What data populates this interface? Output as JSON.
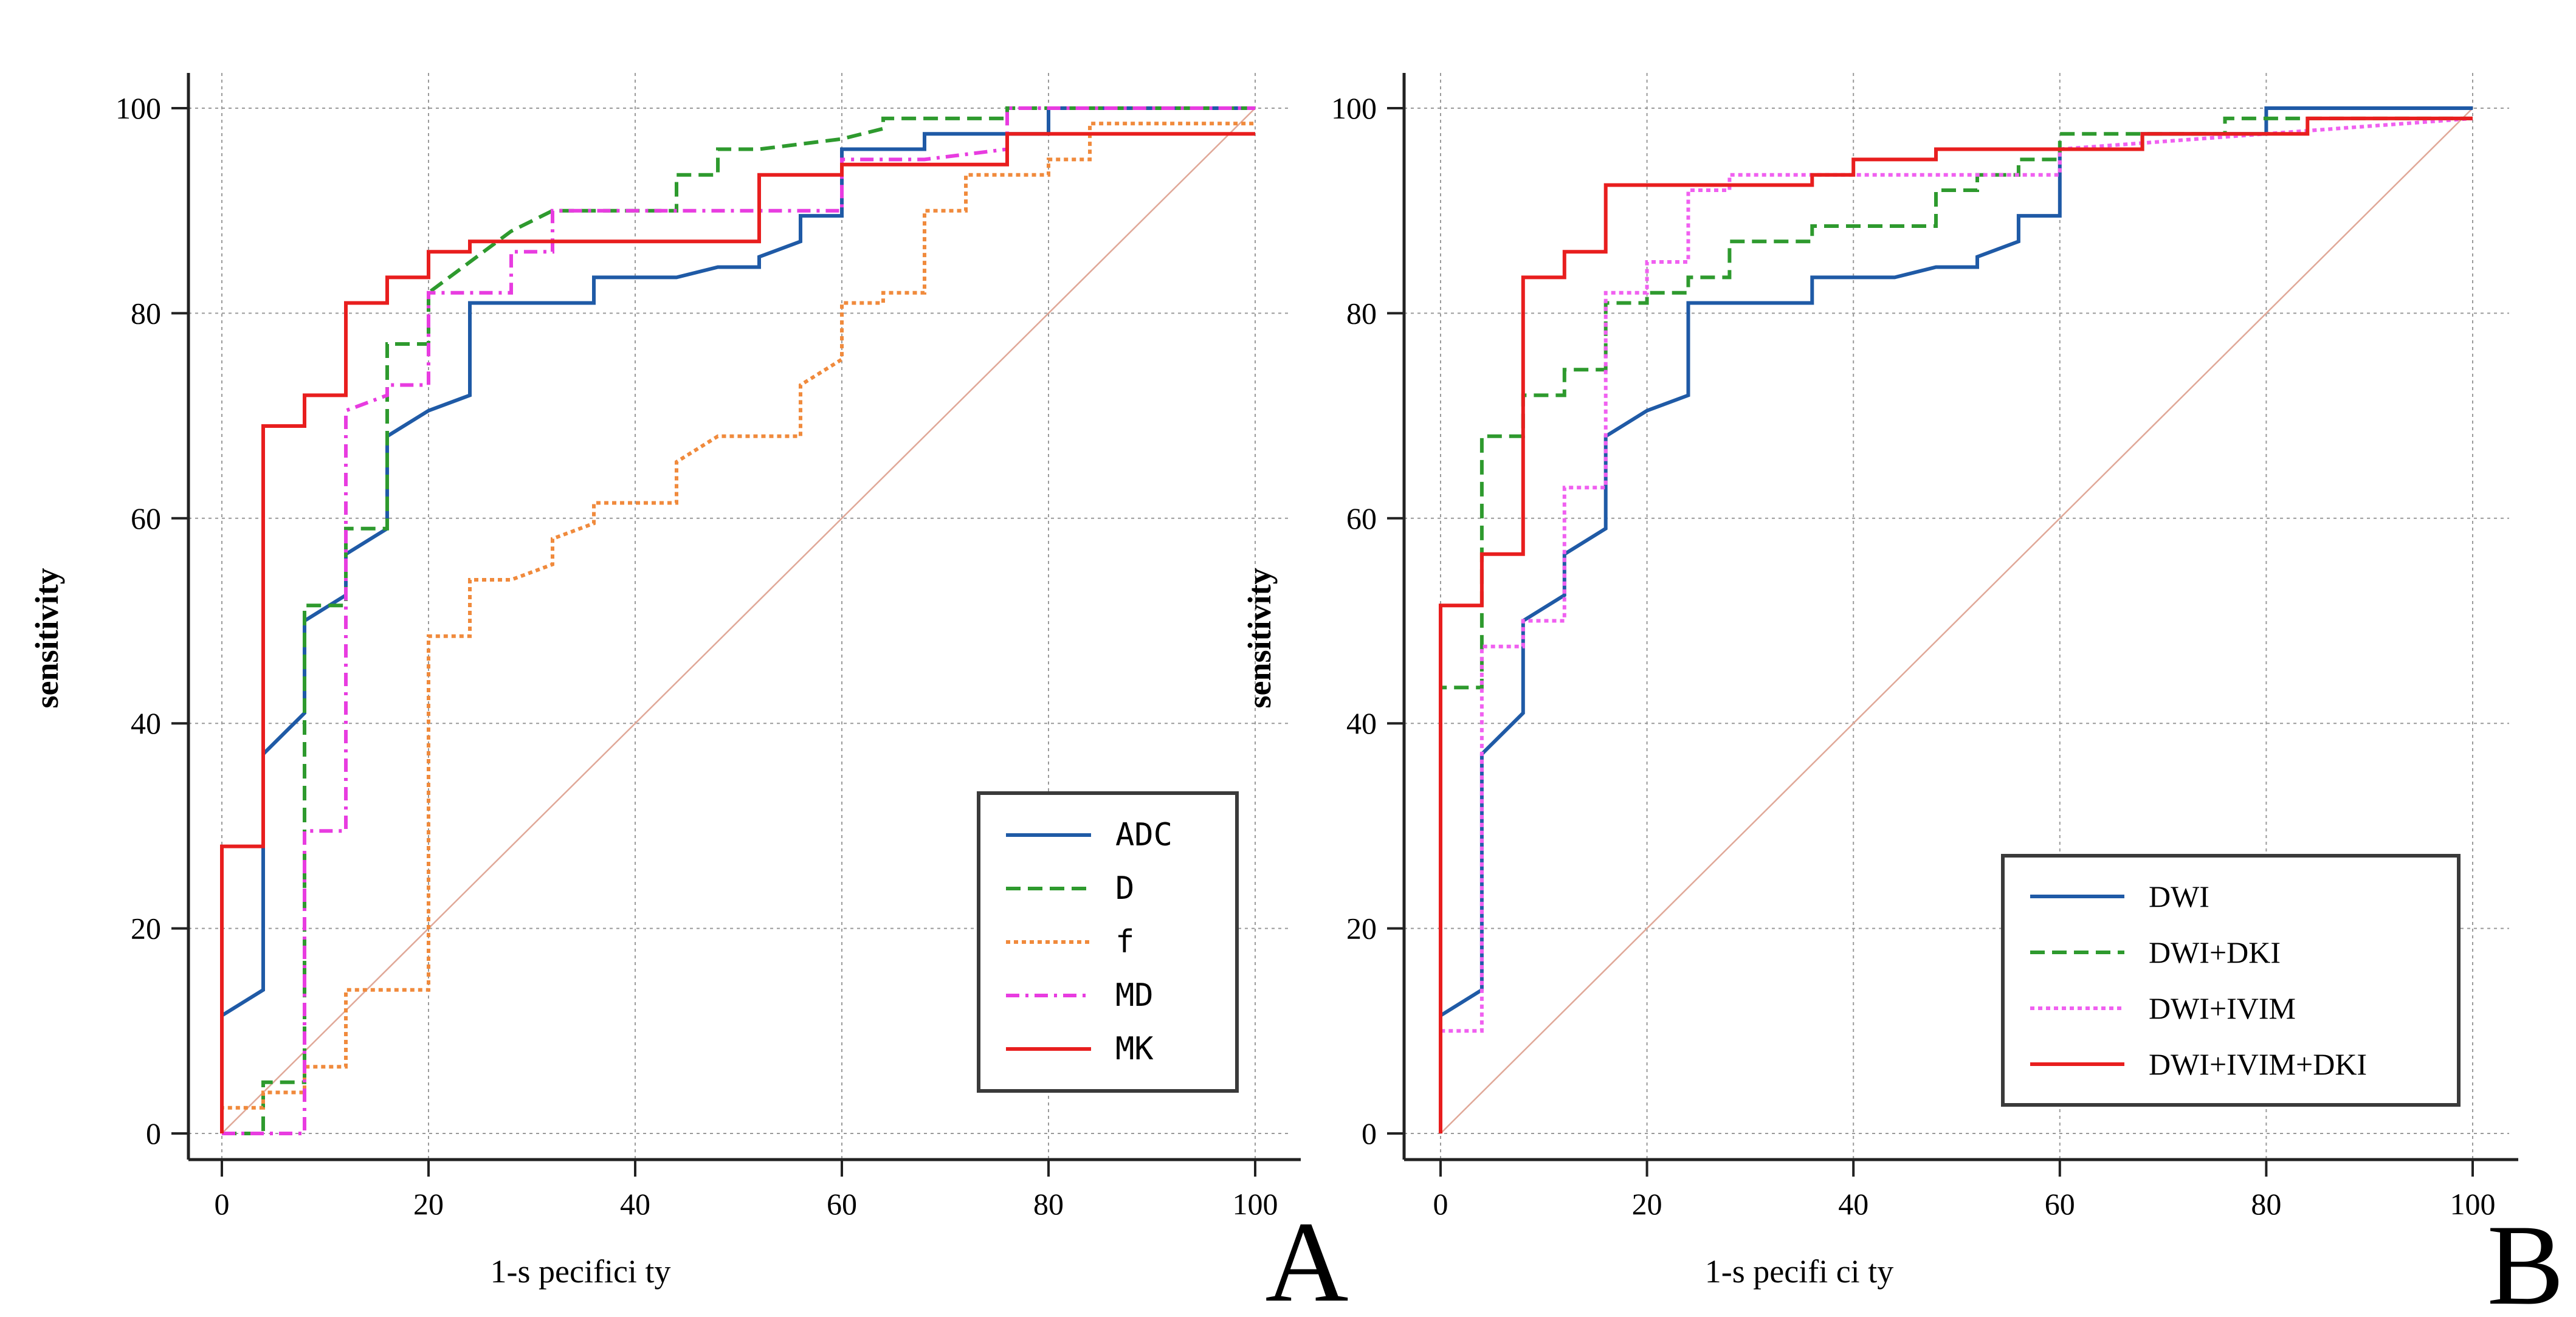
{
  "chart_data": [
    {
      "panel_label": "A",
      "type": "line",
      "xlabel": "1-s pecifici ty",
      "ylabel": "sensitivity",
      "xlim": [
        0,
        100
      ],
      "ylim": [
        0,
        100
      ],
      "xticks": [
        "0",
        "20",
        "40",
        "60",
        "80",
        "100"
      ],
      "yticks": [
        "0",
        "20",
        "40",
        "60",
        "80",
        "100"
      ],
      "grid": true,
      "legend_position": "bottom-right",
      "reference_line": {
        "x": [
          0,
          100
        ],
        "y": [
          0,
          100
        ],
        "color": "#e0a898"
      },
      "series": [
        {
          "name": "ADC",
          "color": "#1f5aa6",
          "dash": "solid",
          "x": [
            0,
            0,
            4,
            4,
            8,
            8,
            12,
            12,
            16,
            16,
            20,
            24,
            24,
            36,
            36,
            44,
            48,
            52,
            52,
            56,
            56,
            60,
            60,
            68,
            68,
            80,
            80,
            100
          ],
          "y": [
            0,
            11.5,
            14,
            37,
            41,
            50,
            52.5,
            56.5,
            59,
            68,
            70.5,
            72,
            81,
            81,
            83.5,
            83.5,
            84.5,
            84.5,
            85.5,
            87,
            89.5,
            89.5,
            96,
            96,
            97.5,
            97.5,
            100,
            100
          ]
        },
        {
          "name": "D",
          "color": "#2e9a2e",
          "dash": "dashed",
          "x": [
            0,
            4,
            4,
            8,
            8,
            12,
            12,
            16,
            16,
            20,
            20,
            28,
            32,
            44,
            44,
            48,
            48,
            52,
            60,
            64,
            64,
            76,
            76,
            100
          ],
          "y": [
            0,
            0,
            5,
            5,
            51.5,
            51.5,
            59,
            59,
            77,
            77,
            82,
            88,
            90,
            90,
            93.5,
            93.5,
            96,
            96,
            97,
            98,
            99,
            99,
            100,
            100
          ]
        },
        {
          "name": "f",
          "color": "#f08a3c",
          "dash": "dotted",
          "x": [
            0,
            0,
            4,
            4,
            8,
            8,
            12,
            12,
            20,
            20,
            24,
            24,
            28,
            32,
            32,
            36,
            36,
            44,
            44,
            48,
            48,
            56,
            56,
            60,
            60,
            64,
            64,
            68,
            68,
            72,
            72,
            80,
            80,
            84,
            84,
            100
          ],
          "y": [
            0,
            2.5,
            2.5,
            4,
            4,
            6.5,
            6.5,
            14,
            14,
            48.5,
            48.5,
            54,
            54,
            55.5,
            58,
            59.5,
            61.5,
            61.5,
            65.5,
            68,
            68,
            68,
            73,
            75.5,
            81,
            81,
            82,
            82,
            90,
            90,
            93.5,
            93.5,
            95,
            95,
            98.5,
            98.5
          ]
        },
        {
          "name": "MD",
          "color": "#e83ce0",
          "dash": "dashdot",
          "x": [
            0,
            8,
            8,
            12,
            12,
            16,
            16,
            20,
            20,
            28,
            28,
            32,
            32,
            60,
            60,
            68,
            76,
            76,
            100
          ],
          "y": [
            0,
            0,
            29.5,
            29.5,
            70.5,
            72,
            73,
            73,
            82,
            82,
            86,
            86,
            90,
            90,
            95,
            95,
            96,
            100,
            100
          ]
        },
        {
          "name": "MK",
          "color": "#e81e1e",
          "dash": "solid",
          "x": [
            0,
            0,
            4,
            4,
            8,
            8,
            12,
            12,
            16,
            16,
            20,
            20,
            24,
            24,
            52,
            52,
            60,
            60,
            76,
            76,
            100
          ],
          "y": [
            0,
            28,
            28,
            69,
            69,
            72,
            72,
            81,
            81,
            83.5,
            83.5,
            86,
            86,
            87,
            87,
            93.5,
            93.5,
            94.5,
            94.5,
            97.5,
            97.5
          ]
        }
      ]
    },
    {
      "panel_label": "B",
      "type": "line",
      "xlabel": "1-s pecifi ci ty",
      "ylabel": "sensitivity",
      "xlim": [
        0,
        100
      ],
      "ylim": [
        0,
        100
      ],
      "xticks": [
        "0",
        "20",
        "40",
        "60",
        "80",
        "100"
      ],
      "yticks": [
        "0",
        "20",
        "40",
        "60",
        "80",
        "100"
      ],
      "grid": true,
      "legend_position": "bottom-right",
      "reference_line": {
        "x": [
          0,
          100
        ],
        "y": [
          0,
          100
        ],
        "color": "#e0a898"
      },
      "series": [
        {
          "name": "DWI",
          "color": "#1f5aa6",
          "dash": "solid",
          "x": [
            0,
            0,
            4,
            4,
            8,
            8,
            12,
            12,
            16,
            16,
            20,
            24,
            24,
            36,
            36,
            44,
            48,
            52,
            52,
            56,
            56,
            60,
            60,
            68,
            68,
            80,
            80,
            100
          ],
          "y": [
            0,
            11.5,
            14,
            37,
            41,
            50,
            52.5,
            56.5,
            59,
            68,
            70.5,
            72,
            81,
            81,
            83.5,
            83.5,
            84.5,
            84.5,
            85.5,
            87,
            89.5,
            89.5,
            96,
            96,
            97.5,
            97.5,
            100,
            100
          ]
        },
        {
          "name": "DWI+DKI",
          "color": "#2e9a2e",
          "dash": "dashed",
          "x": [
            0,
            0,
            4,
            4,
            8,
            8,
            12,
            12,
            16,
            16,
            20,
            20,
            24,
            24,
            28,
            28,
            36,
            36,
            48,
            48,
            52,
            52,
            56,
            56,
            60,
            60,
            76,
            76,
            100
          ],
          "y": [
            0,
            43.5,
            43.5,
            68,
            68,
            72,
            72,
            74.5,
            74.5,
            81,
            81,
            82,
            82,
            83.5,
            83.5,
            87,
            87,
            88.5,
            88.5,
            92,
            92,
            93.5,
            93.5,
            95,
            95,
            97.5,
            97.5,
            99,
            99
          ]
        },
        {
          "name": "DWI+IVIM",
          "color": "#f060f0",
          "dash": "dotted",
          "x": [
            0,
            0,
            4,
            4,
            8,
            8,
            12,
            12,
            16,
            16,
            20,
            20,
            24,
            24,
            28,
            28,
            60,
            60,
            100
          ],
          "y": [
            0,
            10,
            10,
            47.5,
            47.5,
            50,
            50,
            63,
            63,
            82,
            82,
            85,
            85,
            92,
            92,
            93.5,
            93.5,
            96,
            99
          ]
        },
        {
          "name": "DWI+IVIM+DKI",
          "color": "#e81e1e",
          "dash": "solid",
          "x": [
            0,
            0,
            4,
            4,
            8,
            8,
            12,
            12,
            16,
            16,
            36,
            36,
            40,
            40,
            48,
            48,
            60,
            60,
            68,
            68,
            84,
            84,
            100
          ],
          "y": [
            0,
            51.5,
            51.5,
            56.5,
            56.5,
            83.5,
            83.5,
            86,
            86,
            92.5,
            92.5,
            93.5,
            93.5,
            95,
            95,
            96,
            96,
            96,
            96,
            97.5,
            97.5,
            99,
            99
          ]
        }
      ]
    }
  ]
}
